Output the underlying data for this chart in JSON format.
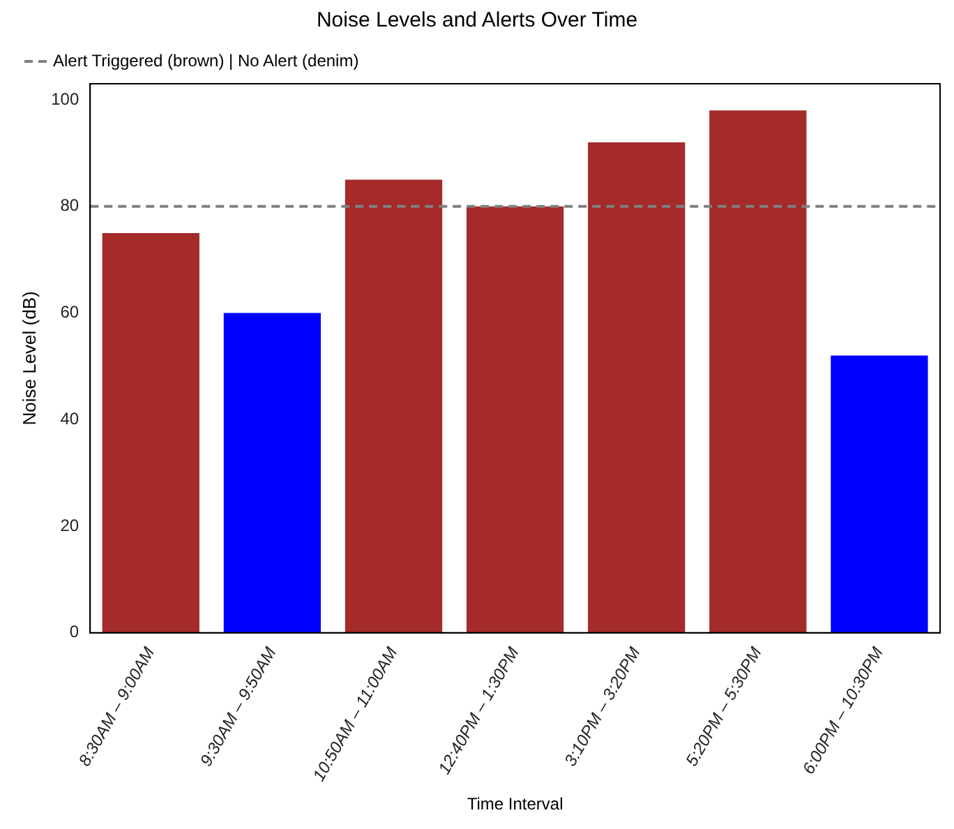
{
  "chart_data": {
    "type": "bar",
    "title": "Noise Levels and Alerts Over Time",
    "xlabel": "Time Interval",
    "ylabel": "Noise Level (dB)",
    "categories": [
      "8:30AM – 9:00AM",
      "9:30AM – 9:50AM",
      "10:50AM – 11:00AM",
      "12:40PM – 1:30PM",
      "3:10PM – 3:20PM",
      "5:20PM – 5:30PM",
      "6:00PM – 10:30PM"
    ],
    "values": [
      75,
      60,
      85,
      80,
      92,
      98,
      52
    ],
    "colors": [
      "#a52a2a",
      "#0000ff",
      "#a52a2a",
      "#a52a2a",
      "#a52a2a",
      "#a52a2a",
      "#0000ff"
    ],
    "ylim": [
      0,
      103
    ],
    "yticks": [
      0,
      20,
      40,
      60,
      80,
      100
    ],
    "ref_lines": [
      {
        "axis": "y",
        "value": 80,
        "label": "Alert Triggered (brown) | No Alert (denim)",
        "color": "#808080",
        "line_style": "dashed"
      }
    ],
    "legend": "top left",
    "grid": false
  }
}
